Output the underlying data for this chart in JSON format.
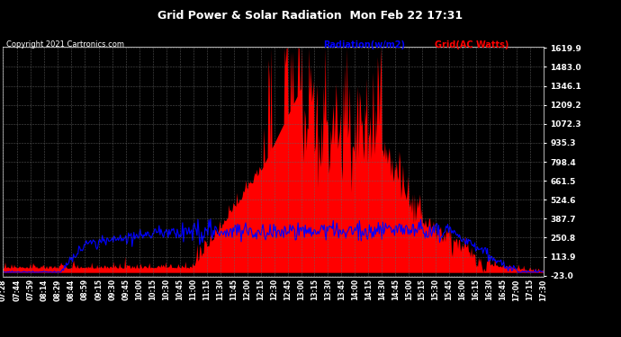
{
  "title": "Grid Power & Solar Radiation  Mon Feb 22 17:31",
  "copyright": "Copyright 2021 Cartronics.com",
  "legend_radiation": "Radiation(w/m2)",
  "legend_grid": "Grid(AC Watts)",
  "bg_color": "#000000",
  "plot_bg_color": "#000000",
  "grid_color": "#888888",
  "title_color": "#ffffff",
  "radiation_color": "#0000ff",
  "grid_ac_color": "#ff0000",
  "ymin": -23.0,
  "ymax": 1619.9,
  "yticks": [
    -23.0,
    113.9,
    250.8,
    387.7,
    524.6,
    661.5,
    798.4,
    935.3,
    1072.3,
    1209.2,
    1346.1,
    1483.0,
    1619.9
  ],
  "x_labels": [
    "07:28",
    "07:44",
    "07:59",
    "08:14",
    "08:29",
    "08:44",
    "08:59",
    "09:15",
    "09:30",
    "09:45",
    "10:00",
    "10:15",
    "10:30",
    "10:45",
    "11:00",
    "11:15",
    "11:30",
    "11:45",
    "12:00",
    "12:15",
    "12:30",
    "12:45",
    "13:00",
    "13:15",
    "13:30",
    "13:45",
    "14:00",
    "14:15",
    "14:30",
    "14:45",
    "15:00",
    "15:15",
    "15:30",
    "15:45",
    "16:00",
    "16:15",
    "16:30",
    "16:45",
    "17:00",
    "17:15",
    "17:30"
  ]
}
